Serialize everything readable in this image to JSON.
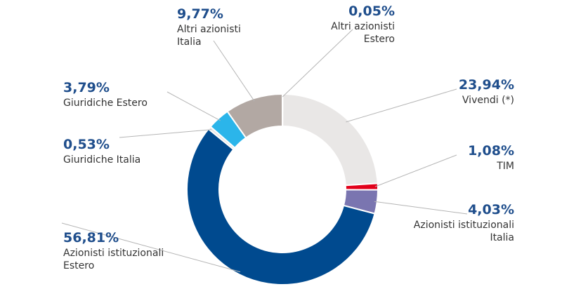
{
  "chart_data": {
    "type": "donut",
    "slices": [
      {
        "value": 0.05,
        "pct_label": "0,05%",
        "label_lines": [
          "Altri azionisti",
          "Estero"
        ],
        "color": "#1f4e8c"
      },
      {
        "value": 23.94,
        "pct_label": "23,94%",
        "label_lines": [
          "Vivendi (*)"
        ],
        "color": "#e9e7e6"
      },
      {
        "value": 1.08,
        "pct_label": "1,08%",
        "label_lines": [
          "TIM"
        ],
        "color": "#e2001a"
      },
      {
        "value": 4.03,
        "pct_label": "4,03%",
        "label_lines": [
          "Azionisti istituzionali",
          "Italia"
        ],
        "color": "#7a75b0"
      },
      {
        "value": 56.81,
        "pct_label": "56,81%",
        "label_lines": [
          "Azionisti istituzionali",
          "Estero"
        ],
        "color": "#004a8f"
      },
      {
        "value": 0.53,
        "pct_label": "0,53%",
        "label_lines": [
          "Giuridiche Italia"
        ],
        "color": "#e9e7e6"
      },
      {
        "value": 3.79,
        "pct_label": "3,79%",
        "label_lines": [
          "Giuridiche Estero"
        ],
        "color": "#2bb5ea"
      },
      {
        "value": 9.77,
        "pct_label": "9,77%",
        "label_lines": [
          "Altri azionisti",
          "Italia"
        ],
        "color": "#b2a8a3"
      }
    ]
  }
}
